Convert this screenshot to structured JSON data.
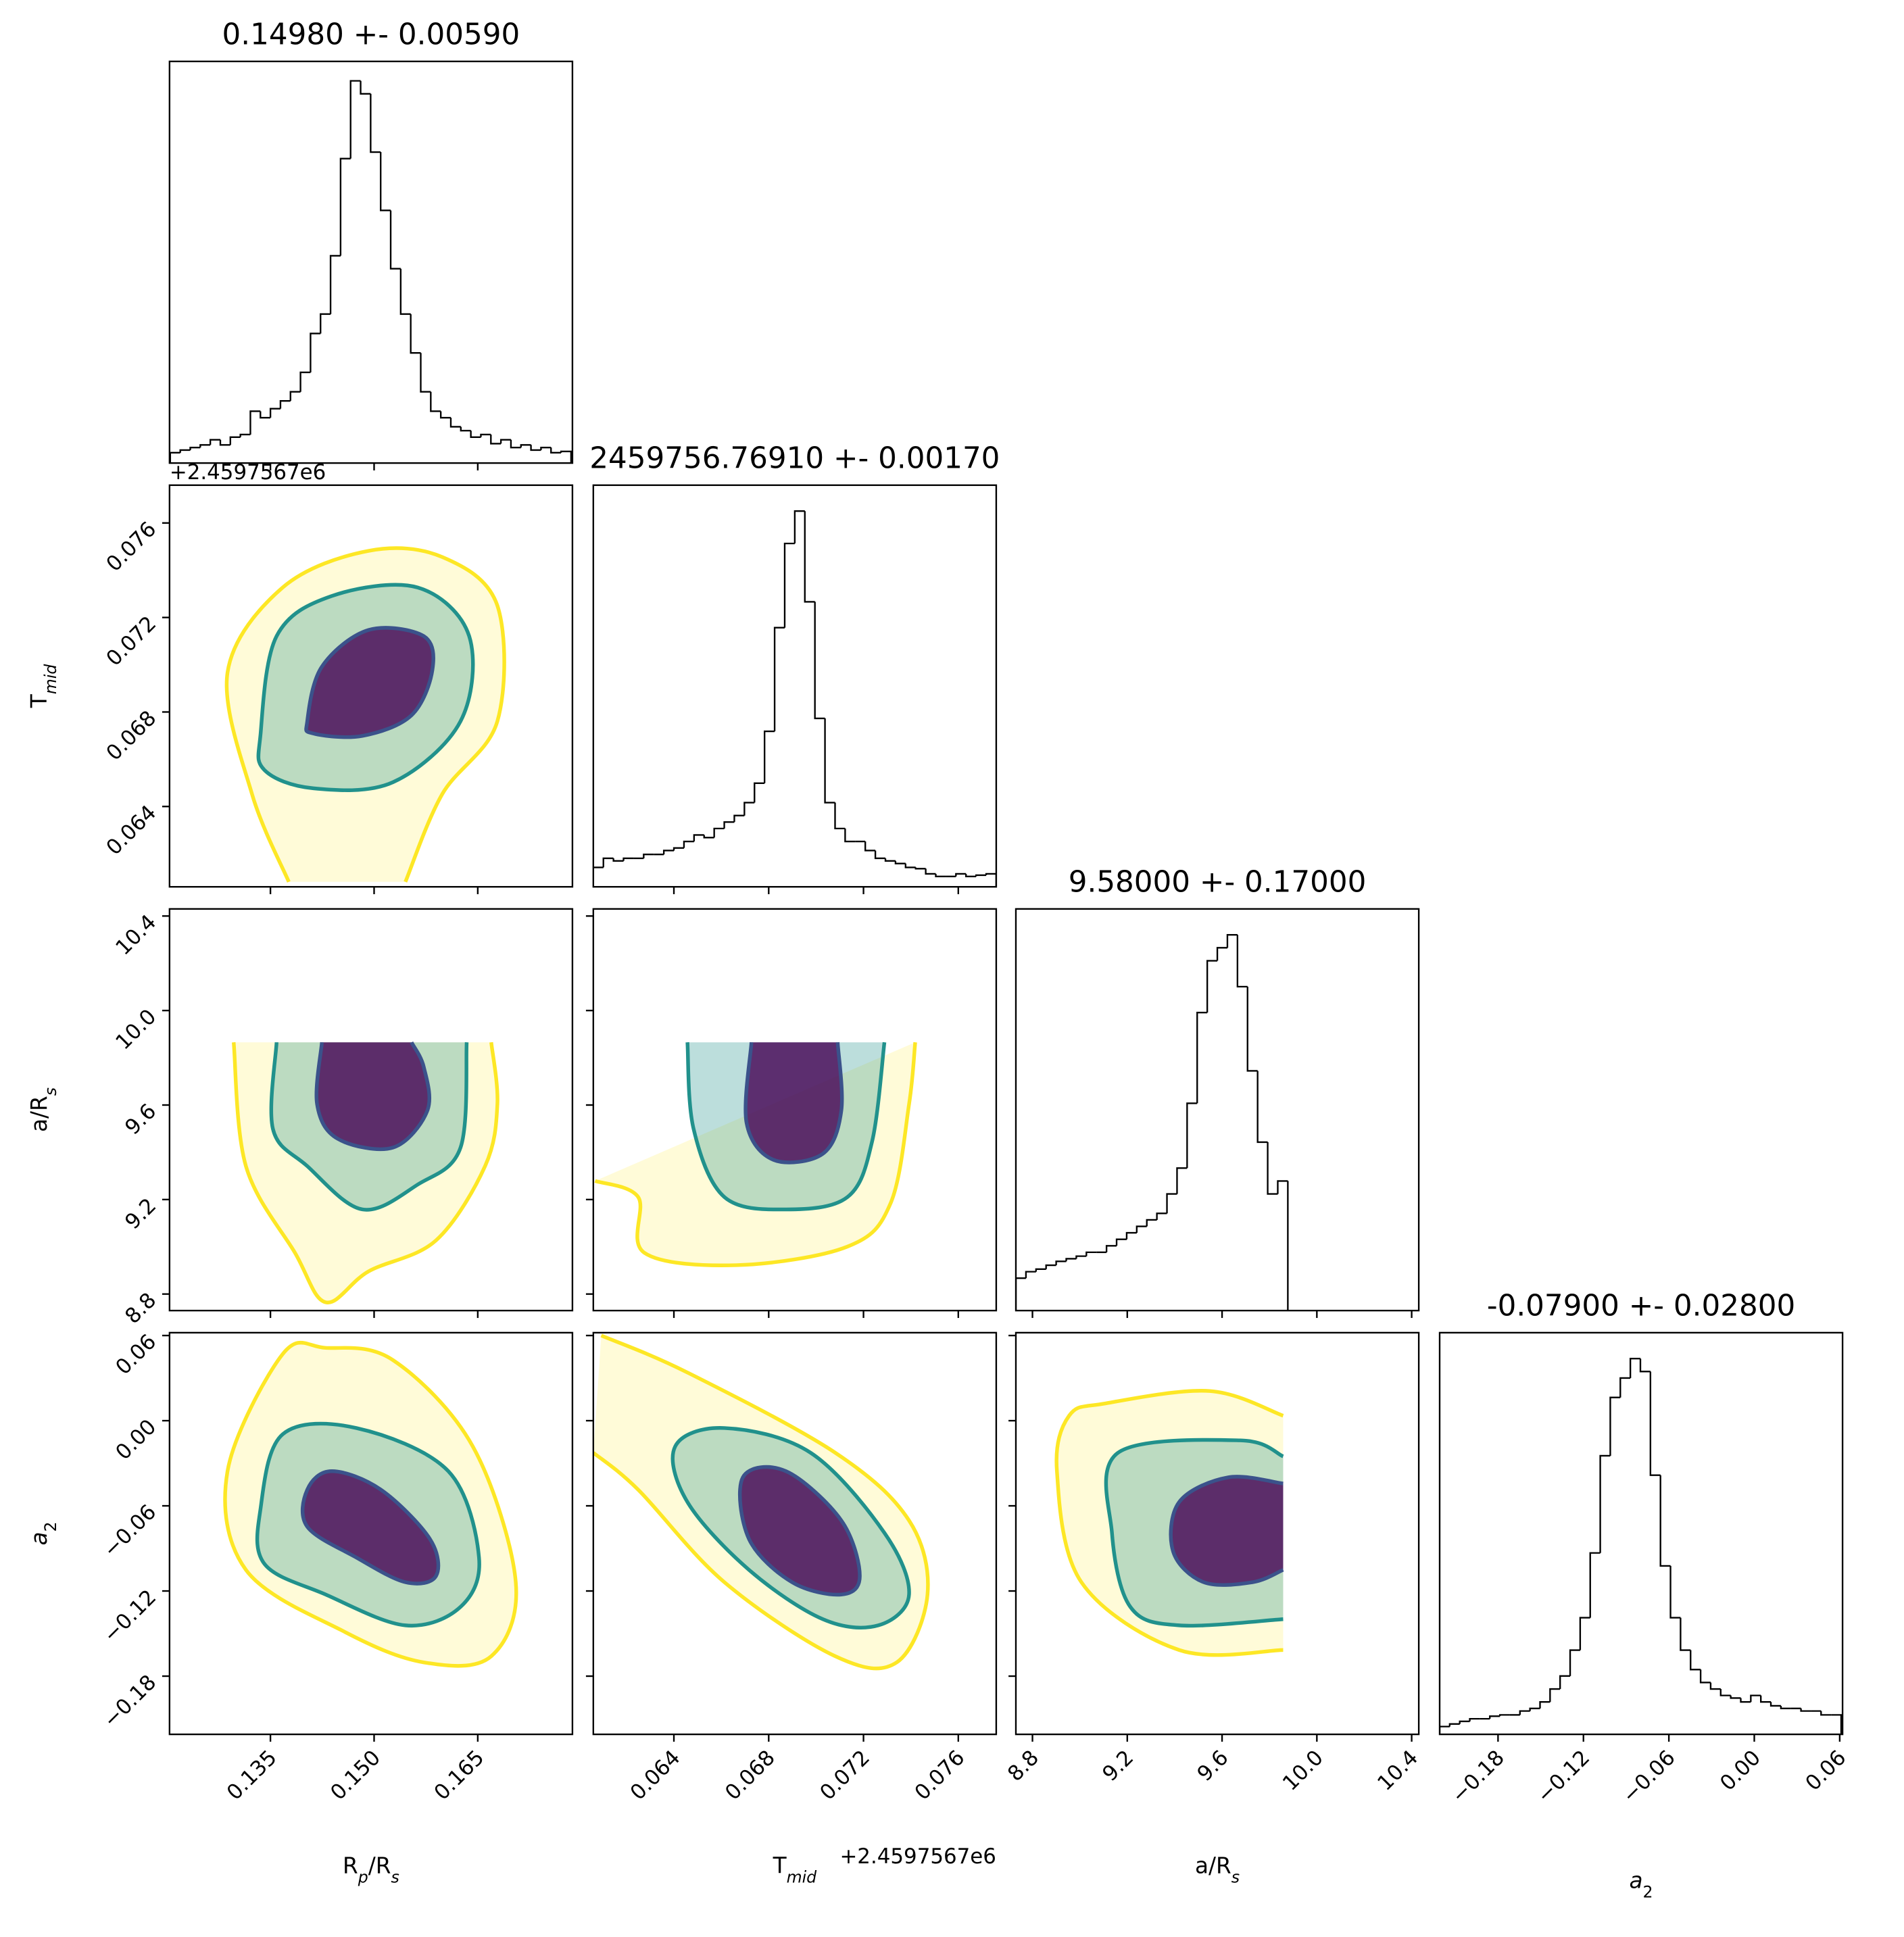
{
  "chart_data": [
    {
      "type": "histogram",
      "title": "0.14980 +- 0.00590",
      "color": "#000000",
      "xlim": [
        0.1204,
        0.1787
      ],
      "ylim": [
        0,
        310
      ],
      "xticks": [
        0.135,
        0.15,
        0.165
      ],
      "bins": [
        0.1205,
        0.12195,
        0.1234,
        0.12485,
        0.1263,
        0.12775,
        0.1292,
        0.13065,
        0.1321,
        0.13355,
        0.135,
        0.13645,
        0.1379,
        0.13935,
        0.1408,
        0.14225,
        0.1437,
        0.14515,
        0.1466,
        0.14805,
        0.1495,
        0.15095,
        0.1524,
        0.15385,
        0.1553,
        0.15675,
        0.1582,
        0.15965,
        0.1611,
        0.16255,
        0.164,
        0.16545,
        0.1669,
        0.16835,
        0.1698,
        0.17125,
        0.1727,
        0.17415,
        0.1756,
        0.17705,
        0.1785
      ],
      "values": [
        8,
        10,
        12,
        14,
        18,
        14,
        20,
        22,
        40,
        35,
        42,
        48,
        55,
        70,
        100,
        115,
        160,
        235,
        295,
        285,
        240,
        195,
        150,
        115,
        85,
        55,
        40,
        35,
        28,
        25,
        20,
        22,
        15,
        18,
        12,
        14,
        10,
        12,
        8,
        9
      ]
    },
    {
      "type": "contour",
      "xlim": [
        0.1204,
        0.1787
      ],
      "ylim": [
        0.0606,
        0.0776
      ],
      "xticks": [
        0.135,
        0.15,
        0.165
      ],
      "yticks": [
        0.064,
        0.068,
        0.072,
        0.076
      ],
      "ylabel": [
        {
          "text": "T"
        },
        {
          "text": "mid",
          "sub": true,
          "italic": true
        }
      ],
      "y_offset_label": "+2.4597567e6",
      "contours": [
        {
          "color": "#fde725",
          "closed": false,
          "x": [
            0.13766,
            0.13234,
            0.12879,
            0.13678,
            0.1492,
            0.15985,
            0.16784,
            0.16784,
            0.15985,
            0.15453
          ],
          "y": [
            0.06081,
            0.06452,
            0.06967,
            0.07327,
            0.07482,
            0.07456,
            0.0725,
            0.06761,
            0.06452,
            0.06081
          ]
        },
        {
          "color": "#21918c",
          "closed": true,
          "x": [
            0.13358,
            0.13589,
            0.14388,
            0.1563,
            0.16376,
            0.16251,
            0.15275,
            0.14121,
            0.13411
          ],
          "y": [
            0.06709,
            0.07121,
            0.07291,
            0.07327,
            0.07121,
            0.06761,
            0.06503,
            0.06477,
            0.06555
          ]
        },
        {
          "color": "#3b528b",
          "closed": true,
          "x": [
            0.14033,
            0.14245,
            0.1492,
            0.15719,
            0.15843,
            0.15541,
            0.14831,
            0.14121
          ],
          "y": [
            0.06761,
            0.06992,
            0.07147,
            0.07121,
            0.06977,
            0.06786,
            0.06699,
            0.06709
          ]
        }
      ]
    },
    {
      "type": "histogram",
      "title": "2459756.76910 +- 0.00170",
      "color": "#000000",
      "xlim": [
        0.0606,
        0.0776
      ],
      "ylim": [
        0,
        310
      ],
      "xticks": [
        0.064,
        0.068,
        0.072,
        0.076
      ],
      "bins": [
        0.0606,
        0.061025,
        0.06145,
        0.061875,
        0.0623,
        0.062725,
        0.06315,
        0.063575,
        0.064,
        0.064425,
        0.06485,
        0.065275,
        0.0657,
        0.066125,
        0.06655,
        0.066975,
        0.0674,
        0.067825,
        0.06825,
        0.068675,
        0.0691,
        0.069525,
        0.06995,
        0.070375,
        0.0708,
        0.071225,
        0.07165,
        0.072075,
        0.0725,
        0.072925,
        0.07335,
        0.073775,
        0.0742,
        0.074625,
        0.07505,
        0.075475,
        0.0759,
        0.076325,
        0.07675,
        0.077175,
        0.0776
      ],
      "values": [
        15,
        22,
        20,
        22,
        22,
        25,
        25,
        28,
        30,
        35,
        40,
        38,
        45,
        50,
        55,
        65,
        80,
        120,
        200,
        265,
        290,
        220,
        130,
        65,
        45,
        35,
        35,
        28,
        22,
        20,
        18,
        15,
        14,
        10,
        8,
        8,
        10,
        8,
        9,
        10
      ]
    },
    {
      "type": "contour",
      "xlim": [
        0.1204,
        0.1787
      ],
      "ylim": [
        8.73,
        10.43
      ],
      "xticks": [
        0.135,
        0.15,
        0.165
      ],
      "yticks": [
        8.8,
        9.2,
        9.6,
        {
          "value": 10,
          "label": "10.0"
        },
        10.4
      ],
      "ylabel": [
        {
          "text": "a/R"
        },
        {
          "text": "s",
          "sub": true,
          "italic": true
        }
      ],
      "contours": [
        {
          "color": "#fde725",
          "closed": false,
          "x": [
            0.12968,
            0.13145,
            0.13855,
            0.14299,
            0.1492,
            0.15896,
            0.16606,
            0.16784,
            0.16695
          ],
          "y": [
            9.8655,
            9.3415,
            8.9747,
            8.7651,
            8.8961,
            9.0271,
            9.3415,
            9.6035,
            9.8655
          ]
        },
        {
          "color": "#21918c",
          "closed": false,
          "x": [
            0.13589,
            0.13536,
            0.14033,
            0.14831,
            0.1563,
            0.16251,
            0.1634
          ],
          "y": [
            9.8655,
            9.4987,
            9.3415,
            9.1581,
            9.2632,
            9.4201,
            9.8655
          ]
        },
        {
          "color": "#3b528b",
          "closed": false,
          "x": [
            0.14245,
            0.14175,
            0.14476,
            0.15275,
            0.15772,
            0.15719,
            0.15541
          ],
          "y": [
            9.8655,
            9.6035,
            9.4568,
            9.4201,
            9.5773,
            9.7607,
            9.8655
          ]
        }
      ]
    },
    {
      "type": "contour",
      "xlim": [
        0.0606,
        0.0776
      ],
      "ylim": [
        8.73,
        10.43
      ],
      "xticks": [
        0.064,
        0.068,
        0.072,
        0.076
      ],
      "yticks": [
        8.8,
        9.2,
        9.6,
        10,
        10.4
      ],
      "contours": [
        {
          "color": "#fde725",
          "closed": false,
          "x": [
            0.060675,
            0.062493,
            0.062753,
            0.066649,
            0.071325,
            0.073143,
            0.073922,
            0.074182
          ],
          "y": [
            9.2786,
            9.2105,
            8.9747,
            8.9223,
            9.0009,
            9.1843,
            9.6035,
            9.8655
          ]
        },
        {
          "color": "#21918c",
          "closed": false,
          "x": [
            0.064571,
            0.064831,
            0.06613,
            0.068727,
            0.071325,
            0.072364,
            0.072883
          ],
          "y": [
            9.8655,
            9.4987,
            9.2105,
            9.1581,
            9.2105,
            9.4463,
            9.8655
          ]
        },
        {
          "color": "#3b528b",
          "closed": false,
          "x": [
            0.067273,
            0.067065,
            0.068208,
            0.070286,
            0.071065,
            0.070909
          ],
          "y": [
            9.8655,
            9.5249,
            9.3677,
            9.3939,
            9.5773,
            9.8655
          ]
        }
      ]
    },
    {
      "type": "histogram",
      "title": "9.58000 +- 0.17000",
      "color": "#000000",
      "xlim": [
        8.73,
        10.43
      ],
      "ylim": [
        0,
        310
      ],
      "xticks": [
        8.8,
        9.2,
        9.6,
        10,
        10.4
      ],
      "bins": [
        8.73,
        8.7725,
        8.815,
        8.8575,
        8.9,
        8.9425,
        8.985,
        9.0275,
        9.07,
        9.1125,
        9.155,
        9.1975,
        9.24,
        9.2825,
        9.325,
        9.3675,
        9.41,
        9.4525,
        9.495,
        9.5375,
        9.58,
        9.6225,
        9.665,
        9.7075,
        9.75,
        9.7925,
        9.835,
        9.8775,
        9.92,
        9.9625,
        10.005,
        10.0475,
        10.09,
        10.1325,
        10.175,
        10.2175,
        10.26,
        10.3025,
        10.345,
        10.3875,
        10.43
      ],
      "values": [
        25,
        30,
        32,
        35,
        38,
        40,
        42,
        45,
        45,
        50,
        55,
        60,
        65,
        70,
        75,
        90,
        110,
        160,
        230,
        270,
        280,
        290,
        250,
        185,
        130,
        90,
        100,
        0,
        0,
        0,
        0,
        0,
        0,
        0,
        0,
        0,
        0,
        0,
        0,
        0
      ]
    },
    {
      "type": "contour",
      "xlim": [
        0.1204,
        0.1787
      ],
      "ylim": [
        -0.221,
        0.062
      ],
      "xticks": [
        0.135,
        {
          "value": 0.15,
          "label": "0.150"
        },
        0.165
      ],
      "yticks": [
        {
          "value": -0.18,
          "label": "−0.18"
        },
        {
          "value": -0.12,
          "label": "−0.12"
        },
        {
          "value": -0.06,
          "label": "−0.06"
        },
        {
          "value": 0,
          "label": "0.00"
        },
        0.06
      ],
      "xlabel": [
        {
          "text": "R"
        },
        {
          "text": "p",
          "sub": true,
          "italic": true
        },
        {
          "text": "/R"
        },
        {
          "text": "s",
          "sub": true,
          "italic": true
        }
      ],
      "ylabel": [
        {
          "text": "a",
          "italic": true
        },
        {
          "text": "2",
          "sub": true
        }
      ],
      "contours": [
        {
          "color": "#fde725",
          "closed": true,
          "x": [
            0.12879,
            0.13678,
            0.14299,
            0.15275,
            0.16429,
            0.1705,
            0.16695,
            0.15719,
            0.14565,
            0.13145
          ],
          "y": [
            -0.03559,
            0.04697,
            0.05131,
            0.04262,
            -0.01821,
            -0.1138,
            -0.16594,
            -0.17029,
            -0.14856,
            -0.10511
          ]
        },
        {
          "color": "#21918c",
          "closed": true,
          "x": [
            0.13358,
            0.13678,
            0.14743,
            0.16074,
            0.16518,
            0.16251,
            0.15453,
            0.14299,
            0.13411
          ],
          "y": [
            -0.06166,
            -0.00952,
            -0.00518,
            -0.03559,
            -0.09642,
            -0.13118,
            -0.14422,
            -0.12249,
            -0.10077
          ]
        },
        {
          "color": "#3b528b",
          "closed": true,
          "x": [
            0.14033,
            0.14388,
            0.15098,
            0.15808,
            0.15896,
            0.15453,
            0.14743,
            0.14033
          ],
          "y": [
            -0.04863,
            -0.03559,
            -0.04863,
            -0.08339,
            -0.10946,
            -0.1138,
            -0.09642,
            -0.0747
          ]
        }
      ]
    },
    {
      "type": "contour",
      "xlim": [
        0.0606,
        0.0776
      ],
      "ylim": [
        -0.221,
        0.062
      ],
      "xticks": [
        0.064,
        0.068,
        0.072,
        0.076
      ],
      "yticks": [
        -0.18,
        -0.12,
        -0.06,
        0,
        0.06
      ],
      "xlabel": [
        {
          "text": "T"
        },
        {
          "text": "mid",
          "sub": true,
          "italic": true
        }
      ],
      "x_offset_label": "+2.4597567e6",
      "contours": [
        {
          "color": "#fde725",
          "closed": false,
          "x": [
            0.060935,
            0.064571,
            0.070805,
            0.073922,
            0.074701,
            0.073403,
            0.070805,
            0.06613,
            0.062493,
            0.0606
          ],
          "y": [
            0.06,
            0.03393,
            -0.02256,
            -0.07035,
            -0.12249,
            -0.17029,
            -0.16594,
            -0.1138,
            -0.04863,
            -0.02256
          ]
        },
        {
          "color": "#21918c",
          "closed": true,
          "x": [
            0.064052,
            0.06613,
            0.069766,
            0.072883,
            0.073922,
            0.072623,
            0.070286,
            0.067169,
            0.064571
          ],
          "y": [
            -0.01821,
            -0.00518,
            -0.02256,
            -0.07904,
            -0.12249,
            -0.14422,
            -0.13987,
            -0.10511,
            -0.05731
          ]
        },
        {
          "color": "#3b528b",
          "closed": true,
          "x": [
            0.066909,
            0.068727,
            0.071065,
            0.071844,
            0.071065,
            0.068987,
            0.067169
          ],
          "y": [
            -0.03994,
            -0.03559,
            -0.07035,
            -0.10946,
            -0.12249,
            -0.1138,
            -0.08339
          ]
        }
      ]
    },
    {
      "type": "contour",
      "xlim": [
        8.73,
        10.43
      ],
      "ylim": [
        -0.221,
        0.062
      ],
      "xticks": [
        8.8,
        9.2,
        9.6,
        {
          "value": 10,
          "label": "10.0"
        },
        10.4
      ],
      "yticks": [
        -0.18,
        -0.12,
        -0.06,
        0,
        0.06
      ],
      "xlabel": [
        {
          "text": "a/R"
        },
        {
          "text": "s",
          "sub": true,
          "italic": true
        }
      ],
      "contours": [
        {
          "color": "#fde725",
          "closed": false,
          "x": [
            9.8578,
            9.5482,
            9.1096,
            8.9548,
            8.9032,
            9.0064,
            9.4192,
            9.8578
          ],
          "y": [
            0.00352,
            0.02089,
            0.0122,
            0.00352,
            -0.03559,
            -0.1138,
            -0.16159,
            -0.16159
          ]
        },
        {
          "color": "#21918c",
          "closed": false,
          "x": [
            9.8578,
            9.6772,
            9.1612,
            9.1354,
            9.2128,
            9.4192,
            9.8578
          ],
          "y": [
            -0.02516,
            -0.01387,
            -0.02256,
            -0.07904,
            -0.13118,
            -0.14422,
            -0.13987
          ]
        },
        {
          "color": "#3b528b",
          "closed": false,
          "x": [
            9.8578,
            9.6256,
            9.4192,
            9.3934,
            9.5224,
            9.7288,
            9.8578
          ],
          "y": [
            -0.04428,
            -0.03994,
            -0.05731,
            -0.09208,
            -0.1138,
            -0.1138,
            -0.10511
          ]
        }
      ]
    },
    {
      "type": "histogram",
      "title": "-0.07900 +- 0.02800",
      "color": "#000000",
      "xlim": [
        -0.221,
        0.062
      ],
      "ylim": [
        0,
        310
      ],
      "xticks": [
        {
          "value": -0.18,
          "label": "−0.18"
        },
        {
          "value": -0.12,
          "label": "−0.12"
        },
        {
          "value": -0.06,
          "label": "−0.06"
        },
        {
          "value": 0,
          "label": "0.00"
        },
        0.06
      ],
      "xlabel": [
        {
          "text": "a",
          "italic": true
        },
        {
          "text": "2",
          "sub": true
        }
      ],
      "bins": [
        -0.221,
        -0.21395,
        -0.2069,
        -0.19985,
        -0.1928,
        -0.18575,
        -0.1787,
        -0.17165,
        -0.1646,
        -0.15755,
        -0.1505,
        -0.14345,
        -0.1364,
        -0.12935,
        -0.1223,
        -0.11525,
        -0.1082,
        -0.10115,
        -0.0941,
        -0.08705,
        -0.08,
        -0.07295,
        -0.0659,
        -0.05885,
        -0.0518,
        -0.04475,
        -0.0377,
        -0.03065,
        -0.0236,
        -0.01655,
        -0.0095,
        -0.00245,
        0.0046,
        0.01165,
        0.0187,
        0.02575,
        0.0328,
        0.03985,
        0.0469,
        0.05395,
        0.061
      ],
      "values": [
        6,
        8,
        10,
        12,
        12,
        14,
        15,
        15,
        18,
        20,
        25,
        35,
        45,
        65,
        90,
        140,
        215,
        260,
        275,
        290,
        280,
        200,
        130,
        90,
        65,
        50,
        40,
        35,
        30,
        28,
        25,
        30,
        25,
        22,
        20,
        20,
        18,
        18,
        15,
        15
      ]
    }
  ]
}
